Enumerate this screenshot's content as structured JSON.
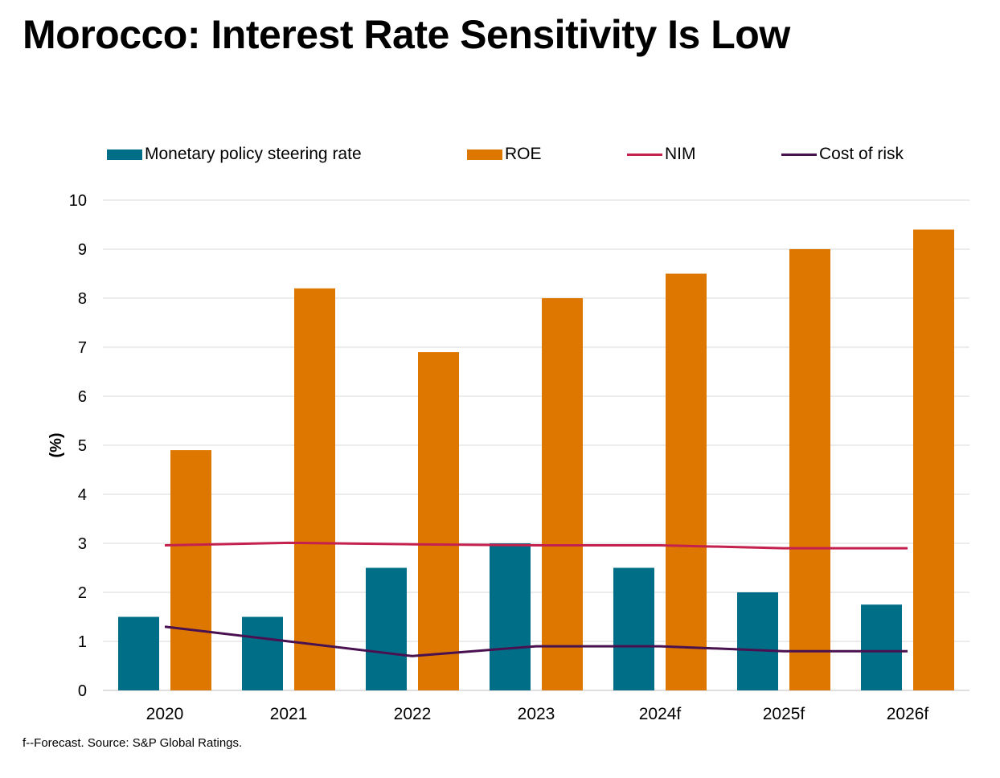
{
  "title": "Morocco: Interest Rate Sensitivity Is Low",
  "footnote": "f--Forecast. Source: S&P Global Ratings.",
  "colors": {
    "policy_rate": "#006E87",
    "roe": "#DD7700",
    "nim": "#C4214F",
    "cost_of_risk": "#4A1150",
    "grid": "#D9D9D9",
    "axis": "#BFBFBF"
  },
  "legend": [
    {
      "label": "Monetary policy steering rate",
      "kind": "box",
      "color": "#006E87"
    },
    {
      "label": "ROE",
      "kind": "box",
      "color": "#DD7700"
    },
    {
      "label": "NIM",
      "kind": "line",
      "color": "#C4214F"
    },
    {
      "label": "Cost of risk",
      "kind": "line",
      "color": "#4A1150"
    }
  ],
  "chart_data": {
    "type": "bar",
    "categories": [
      "2020",
      "2021",
      "2022",
      "2023",
      "2024f",
      "2025f",
      "2026f"
    ],
    "ylabel": "(%)",
    "xlabel": "",
    "ylim": [
      0,
      10
    ],
    "yticks": [
      0,
      1,
      2,
      3,
      4,
      5,
      6,
      7,
      8,
      9,
      10
    ],
    "grid": true,
    "legend_position": "top",
    "series": [
      {
        "name": "Monetary policy steering rate",
        "type": "bar",
        "values": [
          1.5,
          1.5,
          2.5,
          3.0,
          2.5,
          2.0,
          1.75
        ]
      },
      {
        "name": "ROE",
        "type": "bar",
        "values": [
          4.9,
          8.2,
          6.9,
          8.0,
          8.5,
          9.0,
          9.4
        ]
      },
      {
        "name": "NIM",
        "type": "line",
        "values": [
          2.96,
          3.01,
          2.98,
          2.96,
          2.96,
          2.9,
          2.9
        ]
      },
      {
        "name": "Cost of risk",
        "type": "line",
        "values": [
          1.3,
          1.0,
          0.7,
          0.9,
          0.9,
          0.8,
          0.8
        ]
      }
    ]
  }
}
